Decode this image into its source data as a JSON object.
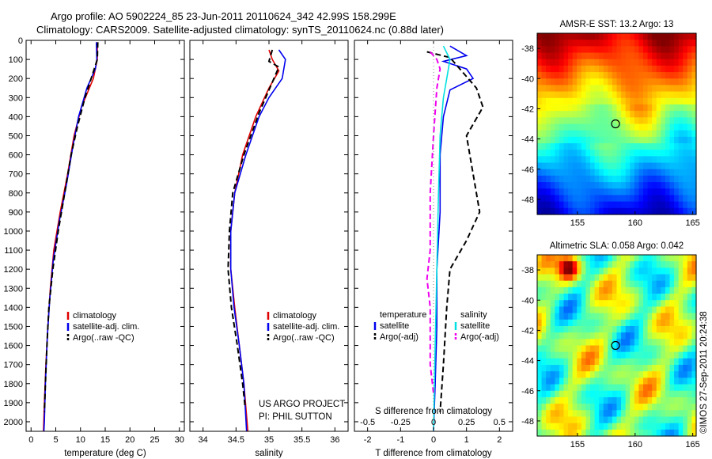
{
  "header": {
    "line1": "Argo profile: AO 5902224_85 23-Jun-2011 20110624_342 42.99S 158.299E",
    "line2": "Climatology: CARS2009. Satellite-adjusted climatology: synTS_20110624.nc (0.88d later)"
  },
  "credit": "©IMOS 27-Sep-2011 20:24:38",
  "project_note": {
    "line1": "US ARGO PROJECT",
    "line2": "PI: PHIL SUTTON"
  },
  "colors": {
    "climatology": "#e00000",
    "satellite": "#0000ee",
    "argo": "#000000",
    "sat_salinity": "#00e0e0",
    "argo_salinity": "#ee00ee"
  },
  "chart_data": [
    {
      "type": "line",
      "name": "temperature-profile",
      "xlabel": "temperature (deg C)",
      "ylabel": "",
      "xlim": [
        -1,
        31
      ],
      "ylim": [
        0,
        2050
      ],
      "y_inverted": true,
      "xticks": [
        0,
        5,
        10,
        15,
        20,
        25,
        30
      ],
      "yticks": [
        0,
        100,
        200,
        300,
        400,
        500,
        600,
        700,
        800,
        900,
        1000,
        1100,
        1200,
        1300,
        1400,
        1500,
        1600,
        1700,
        1800,
        1900,
        2000
      ],
      "legend": {
        "placement": "center-left",
        "entries": [
          "climatology",
          "satellite-adj. clim.",
          "Argo(..raw -QC)"
        ]
      },
      "series": [
        {
          "name": "climatology",
          "style": "solid",
          "color": "#e00000",
          "points": [
            [
              13.4,
              10
            ],
            [
              13.4,
              100
            ],
            [
              12.6,
              200
            ],
            [
              10.2,
              350
            ],
            [
              8.7,
              500
            ],
            [
              7.4,
              700
            ],
            [
              5.9,
              900
            ],
            [
              4.6,
              1100
            ],
            [
              3.9,
              1300
            ],
            [
              3.4,
              1500
            ],
            [
              3.0,
              1700
            ],
            [
              2.7,
              1900
            ],
            [
              2.5,
              2050
            ]
          ]
        },
        {
          "name": "satellite-adj. clim.",
          "style": "solid",
          "color": "#0000ee",
          "points": [
            [
              13.2,
              10
            ],
            [
              13.3,
              100
            ],
            [
              13.0,
              150
            ],
            [
              11.3,
              250
            ],
            [
              9.6,
              400
            ],
            [
              8.5,
              550
            ],
            [
              7.2,
              750
            ],
            [
              5.7,
              950
            ],
            [
              4.5,
              1150
            ],
            [
              3.8,
              1350
            ],
            [
              3.3,
              1550
            ],
            [
              2.9,
              1800
            ],
            [
              2.7,
              2000
            ],
            [
              2.6,
              2050
            ]
          ]
        },
        {
          "name": "Argo(..raw -QC)",
          "style": "dashed",
          "color": "#000000",
          "points": [
            [
              13.5,
              10
            ],
            [
              13.4,
              100
            ],
            [
              12.4,
              180
            ],
            [
              10.9,
              300
            ],
            [
              9.4,
              450
            ],
            [
              8.1,
              600
            ],
            [
              6.8,
              800
            ],
            [
              5.5,
              1000
            ],
            [
              4.4,
              1200
            ],
            [
              3.6,
              1400
            ],
            [
              3.2,
              1600
            ],
            [
              2.9,
              1800
            ],
            [
              2.7,
              1950
            ]
          ]
        }
      ]
    },
    {
      "type": "line",
      "name": "salinity-profile",
      "xlabel": "salinity",
      "xlim": [
        33.8,
        36.2
      ],
      "ylim": [
        0,
        2050
      ],
      "y_inverted": true,
      "xticks": [
        34,
        34.5,
        35,
        35.5,
        36
      ],
      "legend": {
        "placement": "bottom-right",
        "entries": [
          "climatology",
          "satellite-adj. clim.",
          "Argo(..raw -QC)"
        ]
      },
      "series": [
        {
          "name": "climatology",
          "style": "solid",
          "color": "#e00000",
          "points": [
            [
              35.0,
              50
            ],
            [
              35.05,
              100
            ],
            [
              35.15,
              160
            ],
            [
              35.0,
              250
            ],
            [
              34.8,
              400
            ],
            [
              34.6,
              600
            ],
            [
              34.48,
              800
            ],
            [
              34.42,
              1000
            ],
            [
              34.42,
              1200
            ],
            [
              34.48,
              1400
            ],
            [
              34.55,
              1600
            ],
            [
              34.62,
              1800
            ],
            [
              34.68,
              2050
            ]
          ]
        },
        {
          "name": "satellite-adj. clim.",
          "style": "solid",
          "color": "#0000ee",
          "points": [
            [
              35.15,
              50
            ],
            [
              35.25,
              100
            ],
            [
              35.2,
              200
            ],
            [
              35.0,
              300
            ],
            [
              34.85,
              400
            ],
            [
              34.65,
              600
            ],
            [
              34.48,
              800
            ],
            [
              34.42,
              1000
            ],
            [
              34.42,
              1200
            ],
            [
              34.47,
              1400
            ],
            [
              34.55,
              1600
            ],
            [
              34.62,
              1800
            ],
            [
              34.66,
              2050
            ]
          ]
        },
        {
          "name": "Argo(..raw -QC)",
          "style": "dashed",
          "color": "#000000",
          "points": [
            [
              35.05,
              50
            ],
            [
              35.0,
              110
            ],
            [
              35.15,
              140
            ],
            [
              35.05,
              220
            ],
            [
              34.85,
              380
            ],
            [
              34.62,
              600
            ],
            [
              34.45,
              800
            ],
            [
              34.4,
              1000
            ],
            [
              34.38,
              1200
            ],
            [
              34.43,
              1400
            ],
            [
              34.52,
              1600
            ],
            [
              34.6,
              1800
            ],
            [
              34.64,
              1930
            ]
          ]
        }
      ]
    },
    {
      "type": "line",
      "name": "difference-profile",
      "xlabel": "T difference from climatology",
      "xlabel_top": "S difference from climatology",
      "xlim": [
        -2.4,
        2.4
      ],
      "ylim": [
        0,
        2050
      ],
      "y_inverted": true,
      "xticks": [
        -2,
        -1,
        0,
        1,
        2
      ],
      "xticks_salinity": [
        -0.5,
        -0.25,
        0,
        0.25,
        0.5
      ],
      "legend": {
        "placement": "bottom",
        "headers": [
          "temperature",
          "salinity"
        ],
        "entries": [
          "satellite",
          "Argo(-adj)",
          "satellite",
          "Argo(-adj)"
        ]
      },
      "series": [
        {
          "name": "temperature satellite",
          "style": "solid",
          "color": "#0000ee",
          "points": [
            [
              0.5,
              30
            ],
            [
              1.0,
              80
            ],
            [
              0.3,
              110
            ],
            [
              1.0,
              150
            ],
            [
              1.2,
              200
            ],
            [
              0.5,
              260
            ],
            [
              0.3,
              400
            ],
            [
              0.2,
              600
            ],
            [
              0.2,
              900
            ],
            [
              0.1,
              1200
            ],
            [
              0.1,
              1500
            ],
            [
              0.05,
              1800
            ],
            [
              0.0,
              2050
            ]
          ]
        },
        {
          "name": "temperature Argo(-adj)",
          "style": "dashed",
          "color": "#000000",
          "points": [
            [
              -0.2,
              60
            ],
            [
              0.5,
              90
            ],
            [
              1.3,
              250
            ],
            [
              1.5,
              350
            ],
            [
              1.0,
              500
            ],
            [
              1.2,
              700
            ],
            [
              1.4,
              900
            ],
            [
              1.0,
              1050
            ],
            [
              0.5,
              1200
            ],
            [
              0.4,
              1400
            ],
            [
              0.3,
              1700
            ],
            [
              0.2,
              1950
            ]
          ]
        },
        {
          "name": "salinity satellite",
          "style": "solid",
          "color": "#00e0e0",
          "points": [
            [
              0.3,
              30
            ],
            [
              0.5,
              100
            ],
            [
              0.4,
              200
            ],
            [
              0.3,
              300
            ],
            [
              0.2,
              500
            ],
            [
              0.15,
              800
            ],
            [
              0.1,
              1200
            ],
            [
              0.05,
              1600
            ],
            [
              0.0,
              2050
            ]
          ]
        },
        {
          "name": "salinity Argo(-adj)",
          "style": "dashed",
          "color": "#ee00ee",
          "points": [
            [
              -0.1,
              60
            ],
            [
              0.1,
              100
            ],
            [
              0.2,
              150
            ],
            [
              0.1,
              250
            ],
            [
              0.0,
              500
            ],
            [
              -0.1,
              800
            ],
            [
              -0.1,
              1100
            ],
            [
              -0.2,
              1250
            ],
            [
              -0.1,
              1400
            ],
            [
              -0.1,
              1700
            ],
            [
              0.0,
              1850
            ]
          ]
        }
      ]
    },
    {
      "type": "heatmap",
      "name": "sst-map",
      "title": "AMSR-E SST: 13.2 Argo: 13",
      "xlim": [
        151.5,
        165.3
      ],
      "ylim": [
        -49,
        -37
      ],
      "xticks": [
        155,
        160,
        165
      ],
      "yticks": [
        -38,
        -40,
        -42,
        -44,
        -46,
        -48
      ],
      "marker": {
        "lon": 158.3,
        "lat": -43.0
      }
    },
    {
      "type": "heatmap",
      "name": "sla-map",
      "title": "Altimetric SLA: 0.058 Argo: 0.042",
      "xlim": [
        151.5,
        165.3
      ],
      "ylim": [
        -49,
        -37
      ],
      "xticks": [
        155,
        160,
        165
      ],
      "yticks": [
        -38,
        -40,
        -42,
        -44,
        -46,
        -48
      ],
      "marker": {
        "lon": 158.3,
        "lat": -43.0
      }
    }
  ]
}
